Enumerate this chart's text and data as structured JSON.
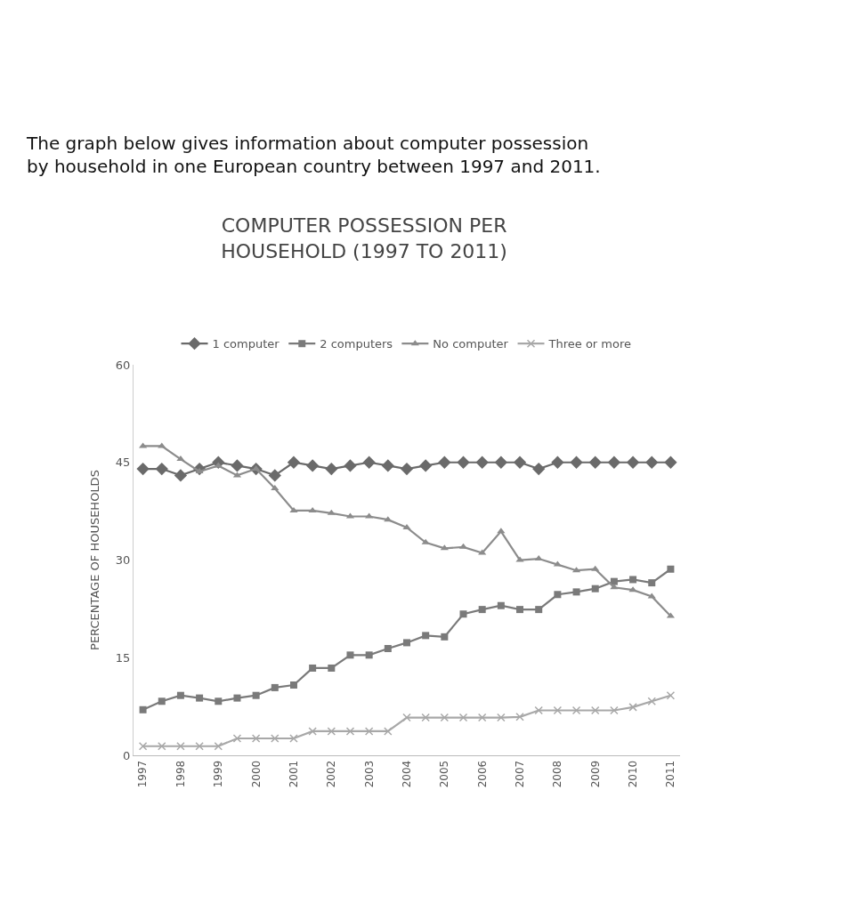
{
  "chart_data": {
    "type": "line",
    "title": "COMPUTER POSSESSION PER HOUSEHOLD (1997 TO 2011)",
    "annotations": [
      "The graph below gives information about computer possession by household in one European country between 1997 and 2011."
    ],
    "ylabel": "PERCENTAGE OF HOUSEHOLDS",
    "categories": [
      "1997",
      null,
      "1998",
      null,
      "1999",
      null,
      "2000",
      null,
      "2001",
      null,
      "2002",
      null,
      "2003",
      null,
      "2004",
      null,
      "2005",
      null,
      "2006",
      null,
      "2007",
      null,
      "2008",
      null,
      "2009",
      null,
      "2010",
      null,
      "2011"
    ],
    "ylim": [
      0,
      60
    ],
    "yticks": [
      0,
      15,
      30,
      45,
      60
    ],
    "grid": false,
    "legend": "top",
    "series": [
      {
        "name": "1 computer",
        "color": "#6a6a6a",
        "marker": "diamond",
        "values": [
          44,
          44,
          43,
          44,
          45,
          44.5,
          44,
          43,
          45,
          44.5,
          44,
          44.5,
          45,
          44.5,
          44,
          44.5,
          45,
          45,
          45,
          45,
          45,
          44,
          45,
          45,
          45,
          45,
          45,
          45,
          45
        ]
      },
      {
        "name": "2 computers",
        "color": "#7a7a7a",
        "marker": "square",
        "values": [
          7,
          8.3,
          9.2,
          8.8,
          8.3,
          8.8,
          9.2,
          10.4,
          10.8,
          13.4,
          13.4,
          15.4,
          15.4,
          16.4,
          17.3,
          18.4,
          18.2,
          21.7,
          22.4,
          23,
          22.4,
          22.4,
          24.7,
          25.1,
          25.6,
          26.7,
          27,
          26.5,
          28.6
        ]
      },
      {
        "name": "No computer",
        "color": "#8c8c8c",
        "marker": "triangle",
        "values": [
          47.5,
          47.5,
          45.5,
          43.6,
          44.5,
          43,
          44,
          41,
          37.6,
          37.6,
          37.2,
          36.7,
          36.7,
          36.2,
          35,
          32.7,
          31.8,
          32,
          31.1,
          34.4,
          30,
          30.2,
          29.3,
          28.4,
          28.6,
          25.8,
          25.4,
          24.4,
          21.4
        ]
      },
      {
        "name": "Three or more",
        "color": "#a8a8a8",
        "marker": "cross",
        "values": [
          1.4,
          1.4,
          1.4,
          1.4,
          1.4,
          2.6,
          2.6,
          2.6,
          2.6,
          3.7,
          3.7,
          3.7,
          3.7,
          3.7,
          5.8,
          5.8,
          5.8,
          5.8,
          5.8,
          5.8,
          5.9,
          6.9,
          6.9,
          6.9,
          6.9,
          6.9,
          7.4,
          8.3,
          9.2
        ]
      }
    ]
  }
}
